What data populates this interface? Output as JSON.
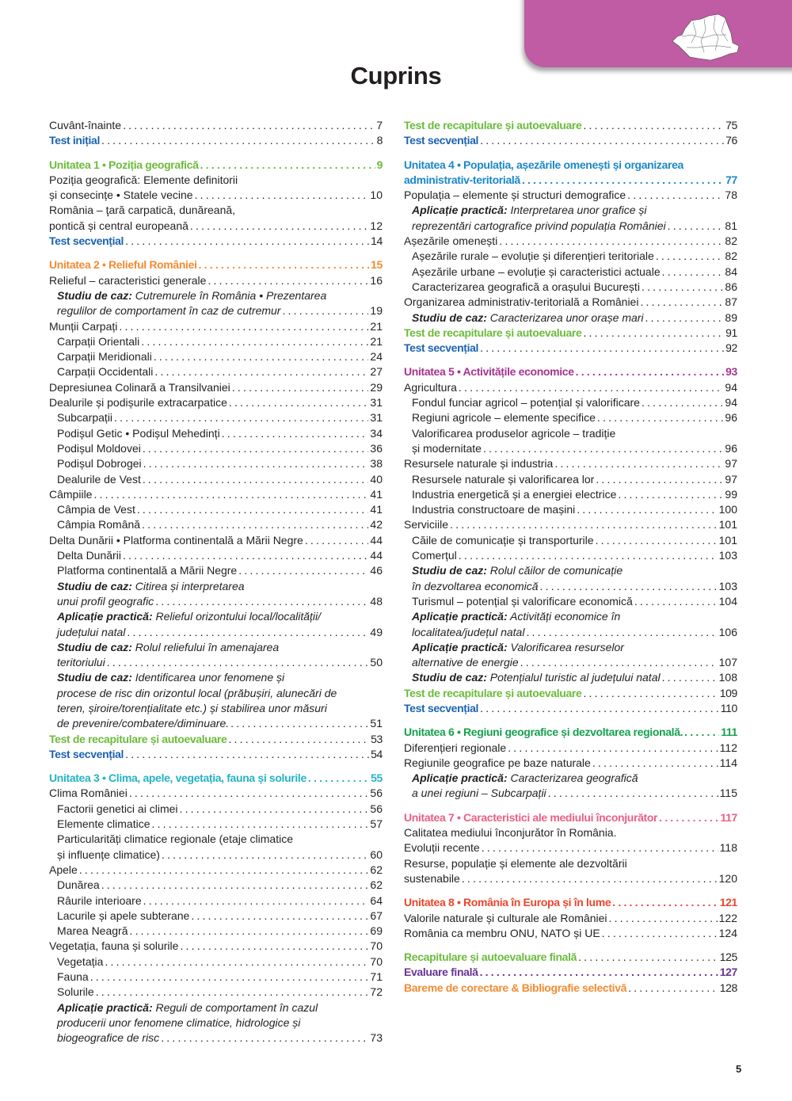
{
  "header": {
    "title": "Cuprins",
    "map_icon": "romania-map-icon",
    "tab_color": "#bf5ca3"
  },
  "page_number": "5",
  "colors": {
    "unit1": "#6cbb3c",
    "unit2": "#f28c33",
    "unit3": "#25b3c4",
    "unit4": "#1b88c8",
    "unit5": "#a8338f",
    "unit6": "#17a04f",
    "unit7": "#ea5f86",
    "unit8": "#e9472c",
    "test": "#1c64b0",
    "recap": "#6cbb3c",
    "evaluare": "#6a3493",
    "bareme": "#f28c33"
  },
  "left": [
    {
      "k": "plain",
      "t": "Cuvânt-înainte",
      "p": "7"
    },
    {
      "k": "test",
      "t": "Test inițial",
      "p": "8"
    },
    {
      "k": "unit",
      "c": "unit1",
      "gap": true,
      "t": "Unitatea 1 • Poziția geografică",
      "p": "9"
    },
    {
      "k": "plain",
      "pre": [
        "Poziția geografică: Elemente definitorii"
      ],
      "t": "și consecințe • Statele vecine",
      "p": "10"
    },
    {
      "k": "plain",
      "pre": [
        "România – ţară carpatică, dunăreană,"
      ],
      "t": "pontică și central europeană",
      "p": "12"
    },
    {
      "k": "test",
      "t": "Test secvențial",
      "p": "14"
    },
    {
      "k": "unit",
      "c": "unit2",
      "gap": true,
      "t": "Unitatea 2 • Relieful României",
      "p": "15"
    },
    {
      "k": "plain",
      "t": "Relieful – caracteristici generale",
      "p": "16"
    },
    {
      "k": "it",
      "i": 1,
      "lbl": "Studiu de caz:",
      "pre": [
        "Cutremurele în România • Prezentarea"
      ],
      "t": "regulilor de comportament în caz de cutremur",
      "p": "19"
    },
    {
      "k": "plain",
      "t": "Munții Carpați",
      "p": "21"
    },
    {
      "k": "plain",
      "i": 1,
      "t": "Carpații Orientali",
      "p": "21"
    },
    {
      "k": "plain",
      "i": 1,
      "t": "Carpații Meridionali",
      "p": "24"
    },
    {
      "k": "plain",
      "i": 1,
      "t": "Carpații Occidentali",
      "p": "27"
    },
    {
      "k": "plain",
      "t": "Depresiunea Colinară a Transilvaniei",
      "p": "29"
    },
    {
      "k": "plain",
      "t": "Dealurile și podișurile extracarpatice",
      "p": "31"
    },
    {
      "k": "plain",
      "i": 1,
      "t": "Subcarpații",
      "p": "31"
    },
    {
      "k": "plain",
      "i": 1,
      "t": "Podișul Getic • Podișul Mehedinți",
      "p": "34"
    },
    {
      "k": "plain",
      "i": 1,
      "t": "Podișul Moldovei",
      "p": "36"
    },
    {
      "k": "plain",
      "i": 1,
      "t": "Podișul Dobrogei",
      "p": "38"
    },
    {
      "k": "plain",
      "i": 1,
      "t": "Dealurile de Vest",
      "p": "40"
    },
    {
      "k": "plain",
      "t": "Câmpiile",
      "p": "41"
    },
    {
      "k": "plain",
      "i": 1,
      "t": "Câmpia de Vest",
      "p": "41"
    },
    {
      "k": "plain",
      "i": 1,
      "t": "Câmpia Română",
      "p": "42"
    },
    {
      "k": "plain",
      "t": "Delta Dunării • Platforma continentală a Mării Negre",
      "p": "44"
    },
    {
      "k": "plain",
      "i": 1,
      "t": "Delta Dunării",
      "p": "44"
    },
    {
      "k": "plain",
      "i": 1,
      "t": "Platforma continentală a Mării Negre",
      "p": "46"
    },
    {
      "k": "it",
      "i": 1,
      "lbl": "Studiu de caz:",
      "pre": [
        "Citirea și interpretarea"
      ],
      "t": "unui profil geografic",
      "p": "48"
    },
    {
      "k": "it",
      "i": 1,
      "lbl": "Aplicație practică:",
      "pre": [
        "Relieful orizontului local/localității/"
      ],
      "t": "județului natal",
      "p": "49"
    },
    {
      "k": "it",
      "i": 1,
      "lbl": "Studiu de caz:",
      "pre": [
        "Rolul reliefului în amenajarea"
      ],
      "t": "teritoriului",
      "p": "50"
    },
    {
      "k": "it",
      "i": 1,
      "lbl": "Studiu de caz:",
      "pre": [
        "Identificarea unor fenomene și",
        "procese de risc din orizontul local (prăbușiri, alunecări de",
        "teren, șiroire/torențialitate etc.) și stabilirea unor măsuri"
      ],
      "t": "de prevenire/combatere/diminuare.",
      "p": "51"
    },
    {
      "k": "recap",
      "t": "Test de recapitulare și autoevaluare",
      "p": "53"
    },
    {
      "k": "test",
      "t": "Test secvențial",
      "p": "54"
    },
    {
      "k": "unit",
      "c": "unit3",
      "gap": true,
      "t": "Unitatea 3 • Clima, apele, vegetația, fauna și solurile",
      "p": "55"
    },
    {
      "k": "plain",
      "t": "Clima României",
      "p": "56"
    },
    {
      "k": "plain",
      "i": 1,
      "t": "Factorii genetici ai climei",
      "p": "56"
    },
    {
      "k": "plain",
      "i": 1,
      "t": "Elemente climatice",
      "p": "57"
    },
    {
      "k": "plain",
      "i": 1,
      "pre": [
        "Particularități climatice regionale (etaje climatice"
      ],
      "t": "și influențe climatice)",
      "p": "60"
    },
    {
      "k": "plain",
      "t": "Apele",
      "p": "62"
    },
    {
      "k": "plain",
      "i": 1,
      "t": "Dunărea",
      "p": "62"
    },
    {
      "k": "plain",
      "i": 1,
      "t": "Râurile interioare",
      "p": "64"
    },
    {
      "k": "plain",
      "i": 1,
      "t": "Lacurile și apele subterane",
      "p": "67"
    },
    {
      "k": "plain",
      "i": 1,
      "t": "Marea Neagră",
      "p": "69"
    },
    {
      "k": "plain",
      "t": "Vegetația, fauna și solurile",
      "p": "70"
    },
    {
      "k": "plain",
      "i": 1,
      "t": "Vegetația",
      "p": "70"
    },
    {
      "k": "plain",
      "i": 1,
      "t": "Fauna",
      "p": "71"
    },
    {
      "k": "plain",
      "i": 1,
      "t": "Solurile",
      "p": "72"
    },
    {
      "k": "it",
      "i": 1,
      "lbl": "Aplicație practică:",
      "pre": [
        "Reguli de comportament în cazul",
        "producerii unor fenomene climatice, hidrologice și"
      ],
      "t": "biogeografice de risc",
      "p": "73"
    }
  ],
  "right": [
    {
      "k": "recap",
      "t": "Test de recapitulare și autoevaluare",
      "p": "75"
    },
    {
      "k": "test",
      "t": "Test secvențial",
      "p": "76"
    },
    {
      "k": "unit",
      "c": "unit4",
      "gap": true,
      "pre": [
        "Unitatea 4 • Populația, așezările omenești și organizarea"
      ],
      "t": "administrativ-teritorială",
      "p": "77"
    },
    {
      "k": "plain",
      "t": "Populația – elemente și structuri demografice",
      "p": "78"
    },
    {
      "k": "it",
      "i": 1,
      "lbl": "Aplicație practică:",
      "pre": [
        "Interpretarea unor grafice și"
      ],
      "t": "reprezentări cartografice privind populația României",
      "p": "81"
    },
    {
      "k": "plain",
      "t": "Așezările omenești",
      "p": "82"
    },
    {
      "k": "plain",
      "i": 1,
      "t": "Așezările rurale – evoluție și diferențieri teritoriale",
      "p": "82"
    },
    {
      "k": "plain",
      "i": 1,
      "t": "Așezările urbane – evoluție și caracteristici actuale",
      "p": "84"
    },
    {
      "k": "plain",
      "i": 1,
      "t": "Caracterizarea geografică a orașului București",
      "p": "86"
    },
    {
      "k": "plain",
      "t": "Organizarea administrativ-teritorială a României",
      "p": "87"
    },
    {
      "k": "it",
      "i": 1,
      "lbl": "Studiu de caz:",
      "t": "Caracterizarea unor orașe mari",
      "p": "89"
    },
    {
      "k": "recap",
      "t": "Test de recapitulare și autoevaluare",
      "p": "91"
    },
    {
      "k": "test",
      "t": "Test secvențial",
      "p": "92"
    },
    {
      "k": "unit",
      "c": "unit5",
      "gap": true,
      "t": "Unitatea 5 • Activitățile economice",
      "p": "93"
    },
    {
      "k": "plain",
      "t": "Agricultura",
      "p": "94"
    },
    {
      "k": "plain",
      "i": 1,
      "t": "Fondul funciar agricol – potențial și valorificare",
      "p": "94"
    },
    {
      "k": "plain",
      "i": 1,
      "t": "Regiuni agricole – elemente specifice",
      "p": "96"
    },
    {
      "k": "plain",
      "i": 1,
      "pre": [
        "Valorificarea produselor agricole – tradiție"
      ],
      "t": "și modernitate",
      "p": "96"
    },
    {
      "k": "plain",
      "t": "Resursele naturale și industria",
      "p": "97"
    },
    {
      "k": "plain",
      "i": 1,
      "t": "Resursele naturale și valorificarea lor",
      "p": "97"
    },
    {
      "k": "plain",
      "i": 1,
      "t": "Industria energetică și a energiei electrice",
      "p": "99"
    },
    {
      "k": "plain",
      "i": 1,
      "t": "Industria constructoare de mașini",
      "p": "100"
    },
    {
      "k": "plain",
      "t": "Serviciile",
      "p": "101"
    },
    {
      "k": "plain",
      "i": 1,
      "t": "Căile de comunicație și transporturile",
      "p": "101"
    },
    {
      "k": "plain",
      "i": 1,
      "t": "Comerțul",
      "p": "103"
    },
    {
      "k": "it",
      "i": 1,
      "lbl": "Studiu de caz:",
      "pre": [
        "Rolul căilor de comunicație"
      ],
      "t": "în dezvoltarea economică",
      "p": "103"
    },
    {
      "k": "plain",
      "i": 1,
      "t": "Turismul – potențial și valorificare economică",
      "p": "104"
    },
    {
      "k": "it",
      "i": 1,
      "lbl": "Aplicație practică:",
      "pre": [
        "Activități economice în"
      ],
      "t": "localitatea/județul natal",
      "p": "106"
    },
    {
      "k": "it",
      "i": 1,
      "lbl": "Aplicație practică:",
      "pre": [
        "Valorificarea resurselor"
      ],
      "t": "alternative de energie",
      "p": "107"
    },
    {
      "k": "it",
      "i": 1,
      "lbl": "Studiu de caz:",
      "t": "Potențialul turistic al județului natal",
      "p": "108"
    },
    {
      "k": "recap",
      "t": "Test de recapitulare și autoevaluare",
      "p": "109"
    },
    {
      "k": "test",
      "t": "Test secvențial",
      "p": "110"
    },
    {
      "k": "unit",
      "c": "unit6",
      "gap": true,
      "t": "Unitatea 6 • Regiuni geografice și dezvoltarea regională.",
      "p": "111"
    },
    {
      "k": "plain",
      "t": "Diferențieri regionale",
      "p": "112"
    },
    {
      "k": "plain",
      "t": "Regiunile geografice pe baze naturale",
      "p": "114"
    },
    {
      "k": "it",
      "i": 1,
      "lbl": "Aplicație practică:",
      "pre": [
        "Caracterizarea geografică"
      ],
      "t": "a unei regiuni – Subcarpații",
      "p": "115"
    },
    {
      "k": "unit",
      "c": "unit7",
      "gap": true,
      "t": "Unitatea 7 • Caracteristici ale mediului înconjurător",
      "p": "117"
    },
    {
      "k": "plain",
      "pre": [
        "Calitatea mediului înconjurător în România."
      ],
      "t": "Evoluții recente",
      "p": "118"
    },
    {
      "k": "plain",
      "pre": [
        "Resurse, populație și elemente ale dezvoltării"
      ],
      "t": "sustenabile",
      "p": "120"
    },
    {
      "k": "unit",
      "c": "unit8",
      "gap": true,
      "t": "Unitatea 8 • România în Europa și în lume",
      "p": "121"
    },
    {
      "k": "plain",
      "t": "Valorile naturale și culturale ale României",
      "p": "122"
    },
    {
      "k": "plain",
      "t": "România ca membru ONU, NATO și UE",
      "p": "124"
    },
    {
      "k": "recap",
      "gap": true,
      "t": "Recapitulare și autoevaluare finală",
      "p": "125"
    },
    {
      "k": "unit",
      "c": "evaluare",
      "t": "Evaluare finală",
      "p": "127"
    },
    {
      "k": "recap2",
      "c": "bareme",
      "t": "Bareme de corectare & Bibliografie selectivă",
      "p": "128"
    }
  ]
}
